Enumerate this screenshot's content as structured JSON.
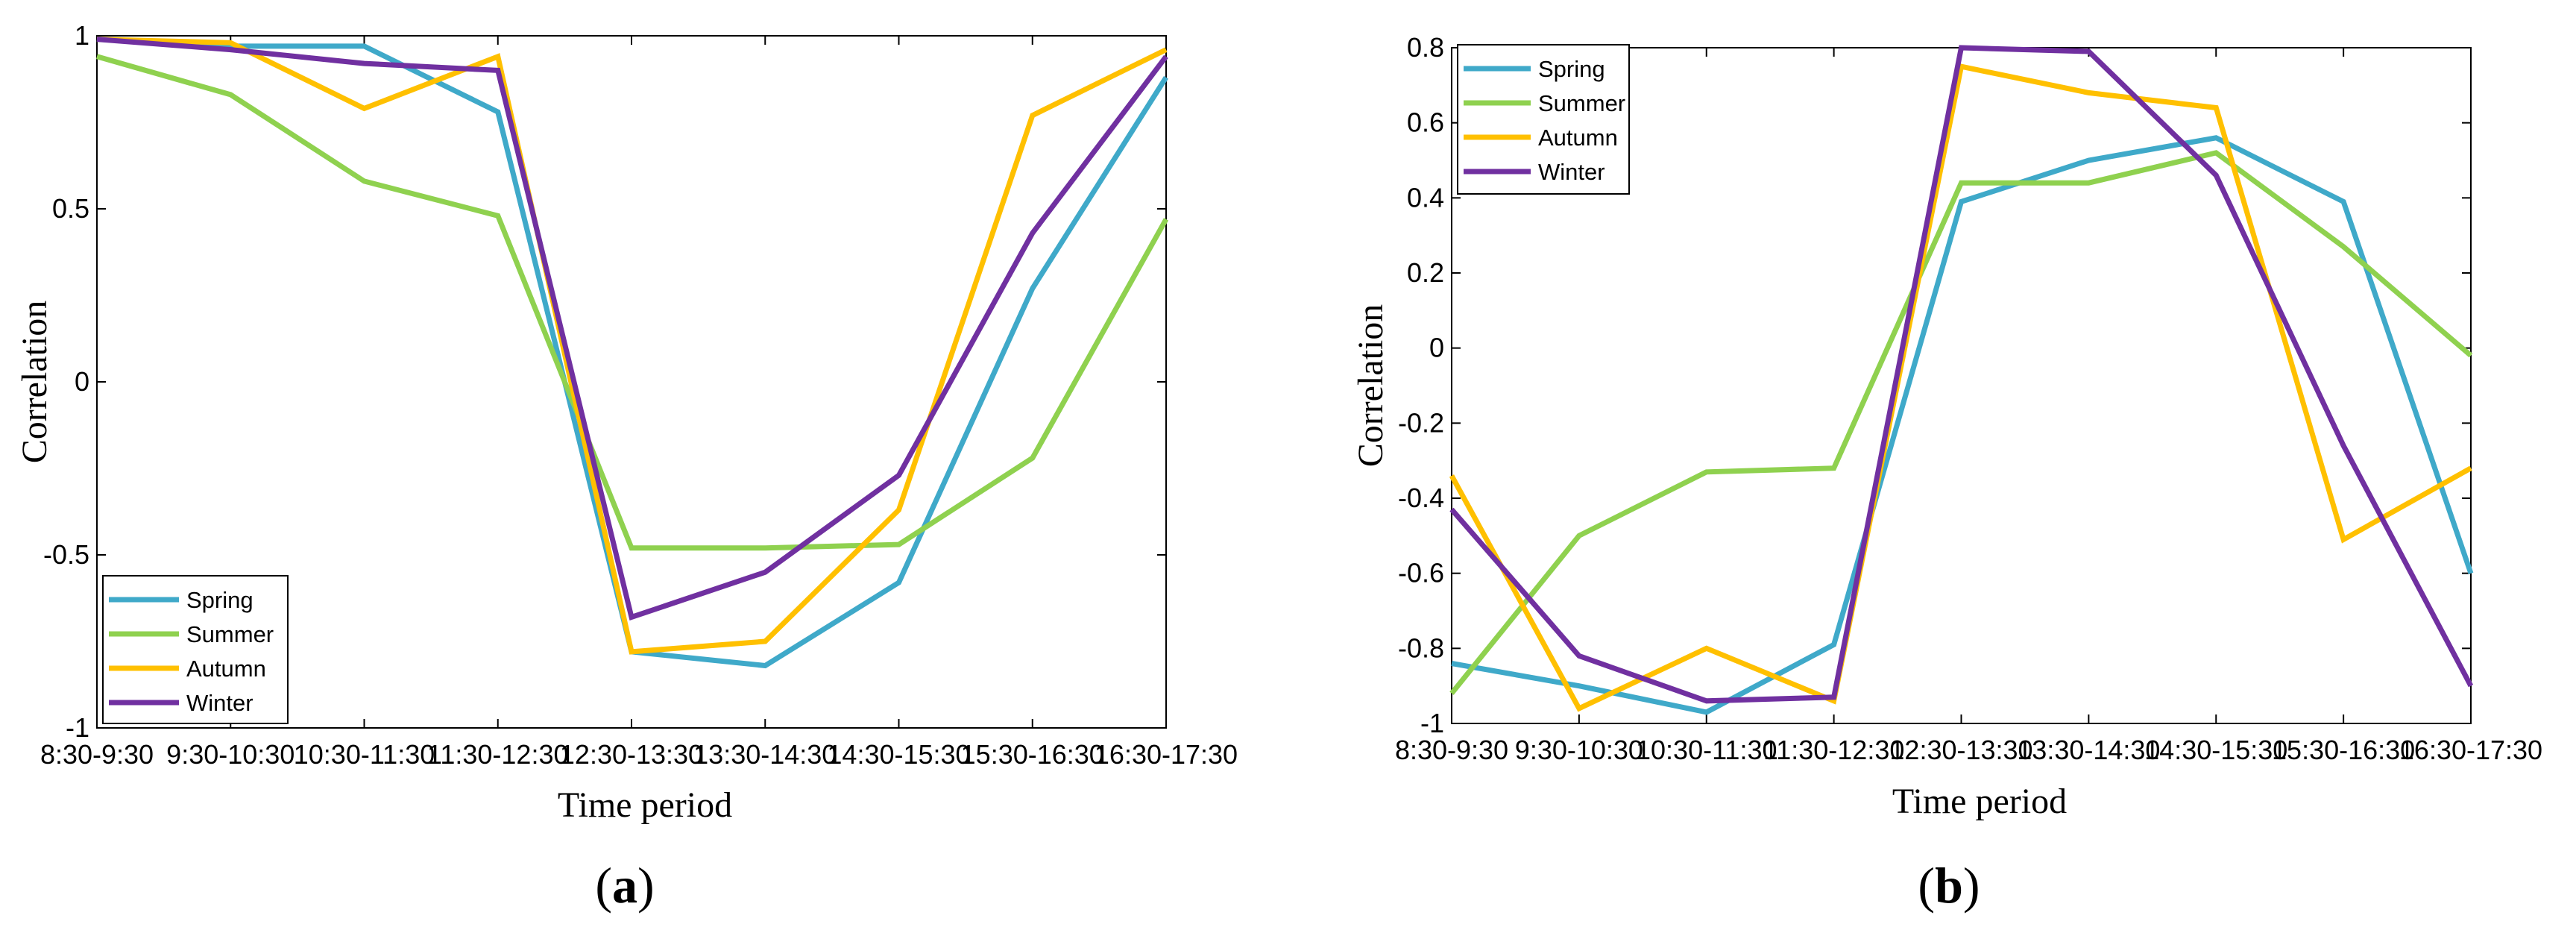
{
  "chart_data": [
    {
      "type": "line",
      "panel": "a",
      "panel_label": "a",
      "xlabel": "Time period",
      "ylabel": "Correlation",
      "categories": [
        "8:30-9:30",
        "9:30-10:30",
        "10:30-11:30",
        "11:30-12:30",
        "12:30-13:30",
        "13:30-14:30",
        "14:30-15:30",
        "15:30-16:30",
        "16:30-17:30"
      ],
      "ylim": [
        -1,
        1
      ],
      "yticks": [
        -1,
        -0.5,
        0,
        0.5,
        1
      ],
      "ytick_labels": [
        "-1",
        "-0.5",
        "0",
        "0.5",
        "1"
      ],
      "legend_position": "bottom-left",
      "series": [
        {
          "name": "Spring",
          "color": "#3FA9C9",
          "values": [
            0.99,
            0.97,
            0.97,
            0.78,
            -0.78,
            -0.82,
            -0.58,
            0.27,
            0.88
          ]
        },
        {
          "name": "Summer",
          "color": "#8FD14F",
          "values": [
            0.94,
            0.83,
            0.58,
            0.48,
            -0.48,
            -0.48,
            -0.47,
            -0.22,
            0.47
          ]
        },
        {
          "name": "Autumn",
          "color": "#FFC000",
          "values": [
            0.99,
            0.98,
            0.79,
            0.94,
            -0.78,
            -0.75,
            -0.37,
            0.77,
            0.96
          ]
        },
        {
          "name": "Winter",
          "color": "#7030A0",
          "values": [
            0.99,
            0.96,
            0.92,
            0.9,
            -0.68,
            -0.55,
            -0.27,
            0.43,
            0.94
          ]
        }
      ]
    },
    {
      "type": "line",
      "panel": "b",
      "panel_label": "b",
      "xlabel": "Time period",
      "ylabel": "Correlation",
      "categories": [
        "8:30-9:30",
        "9:30-10:30",
        "10:30-11:30",
        "11:30-12:30",
        "12:30-13:30",
        "13:30-14:30",
        "14:30-15:30",
        "15:30-16:30",
        "16:30-17:30"
      ],
      "ylim": [
        -1,
        0.8
      ],
      "yticks": [
        -1,
        -0.8,
        -0.6,
        -0.4,
        -0.2,
        0,
        0.2,
        0.4,
        0.6,
        0.8
      ],
      "ytick_labels": [
        "-1",
        "-0.8",
        "-0.6",
        "-0.4",
        "-0.2",
        "0",
        "0.2",
        "0.4",
        "0.6",
        "0.8"
      ],
      "legend_position": "top-left",
      "series": [
        {
          "name": "Spring",
          "color": "#3FA9C9",
          "values": [
            -0.84,
            -0.9,
            -0.97,
            -0.79,
            0.39,
            0.5,
            0.56,
            0.39,
            -0.6
          ]
        },
        {
          "name": "Summer",
          "color": "#8FD14F",
          "values": [
            -0.92,
            -0.5,
            -0.33,
            -0.32,
            0.44,
            0.44,
            0.52,
            0.27,
            -0.02
          ]
        },
        {
          "name": "Autumn",
          "color": "#FFC000",
          "values": [
            -0.34,
            -0.96,
            -0.8,
            -0.94,
            0.75,
            0.68,
            0.64,
            -0.51,
            -0.32
          ]
        },
        {
          "name": "Winter",
          "color": "#7030A0",
          "values": [
            -0.43,
            -0.82,
            -0.94,
            -0.93,
            0.8,
            0.79,
            0.46,
            -0.26,
            -0.9
          ]
        }
      ]
    }
  ]
}
